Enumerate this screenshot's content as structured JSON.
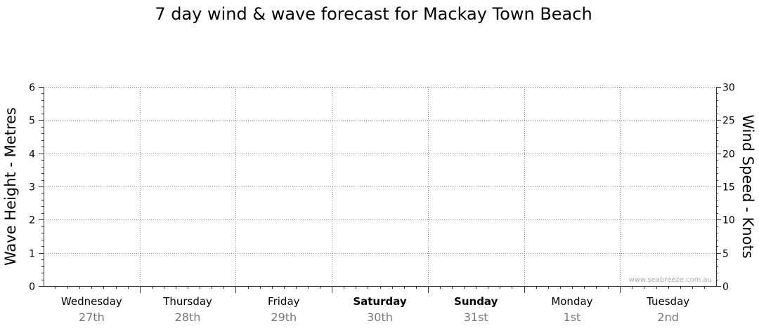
{
  "chart_data": {
    "type": "line",
    "title": "7 day wind & wave forecast for Mackay Town Beach",
    "y_left": {
      "label": "Wave Height - Metres",
      "range": [
        0,
        6
      ],
      "ticks": [
        "0",
        "1",
        "2",
        "3",
        "4",
        "5",
        "6"
      ]
    },
    "y_right": {
      "label": "Wind Speed - Knots",
      "range": [
        0,
        30
      ],
      "ticks": [
        "0",
        "5",
        "10",
        "15",
        "20",
        "25",
        "30"
      ]
    },
    "grid": true,
    "days": [
      {
        "name": "Wednesday",
        "date": "27th",
        "bold": false
      },
      {
        "name": "Thursday",
        "date": "28th",
        "bold": false
      },
      {
        "name": "Friday",
        "date": "29th",
        "bold": false
      },
      {
        "name": "Saturday",
        "date": "30th",
        "bold": true
      },
      {
        "name": "Sunday",
        "date": "31st",
        "bold": true
      },
      {
        "name": "Monday",
        "date": "1st",
        "bold": false
      },
      {
        "name": "Tuesday",
        "date": "2nd",
        "bold": false
      }
    ],
    "series": [],
    "watermark": "www.seabreeze.com.au"
  }
}
